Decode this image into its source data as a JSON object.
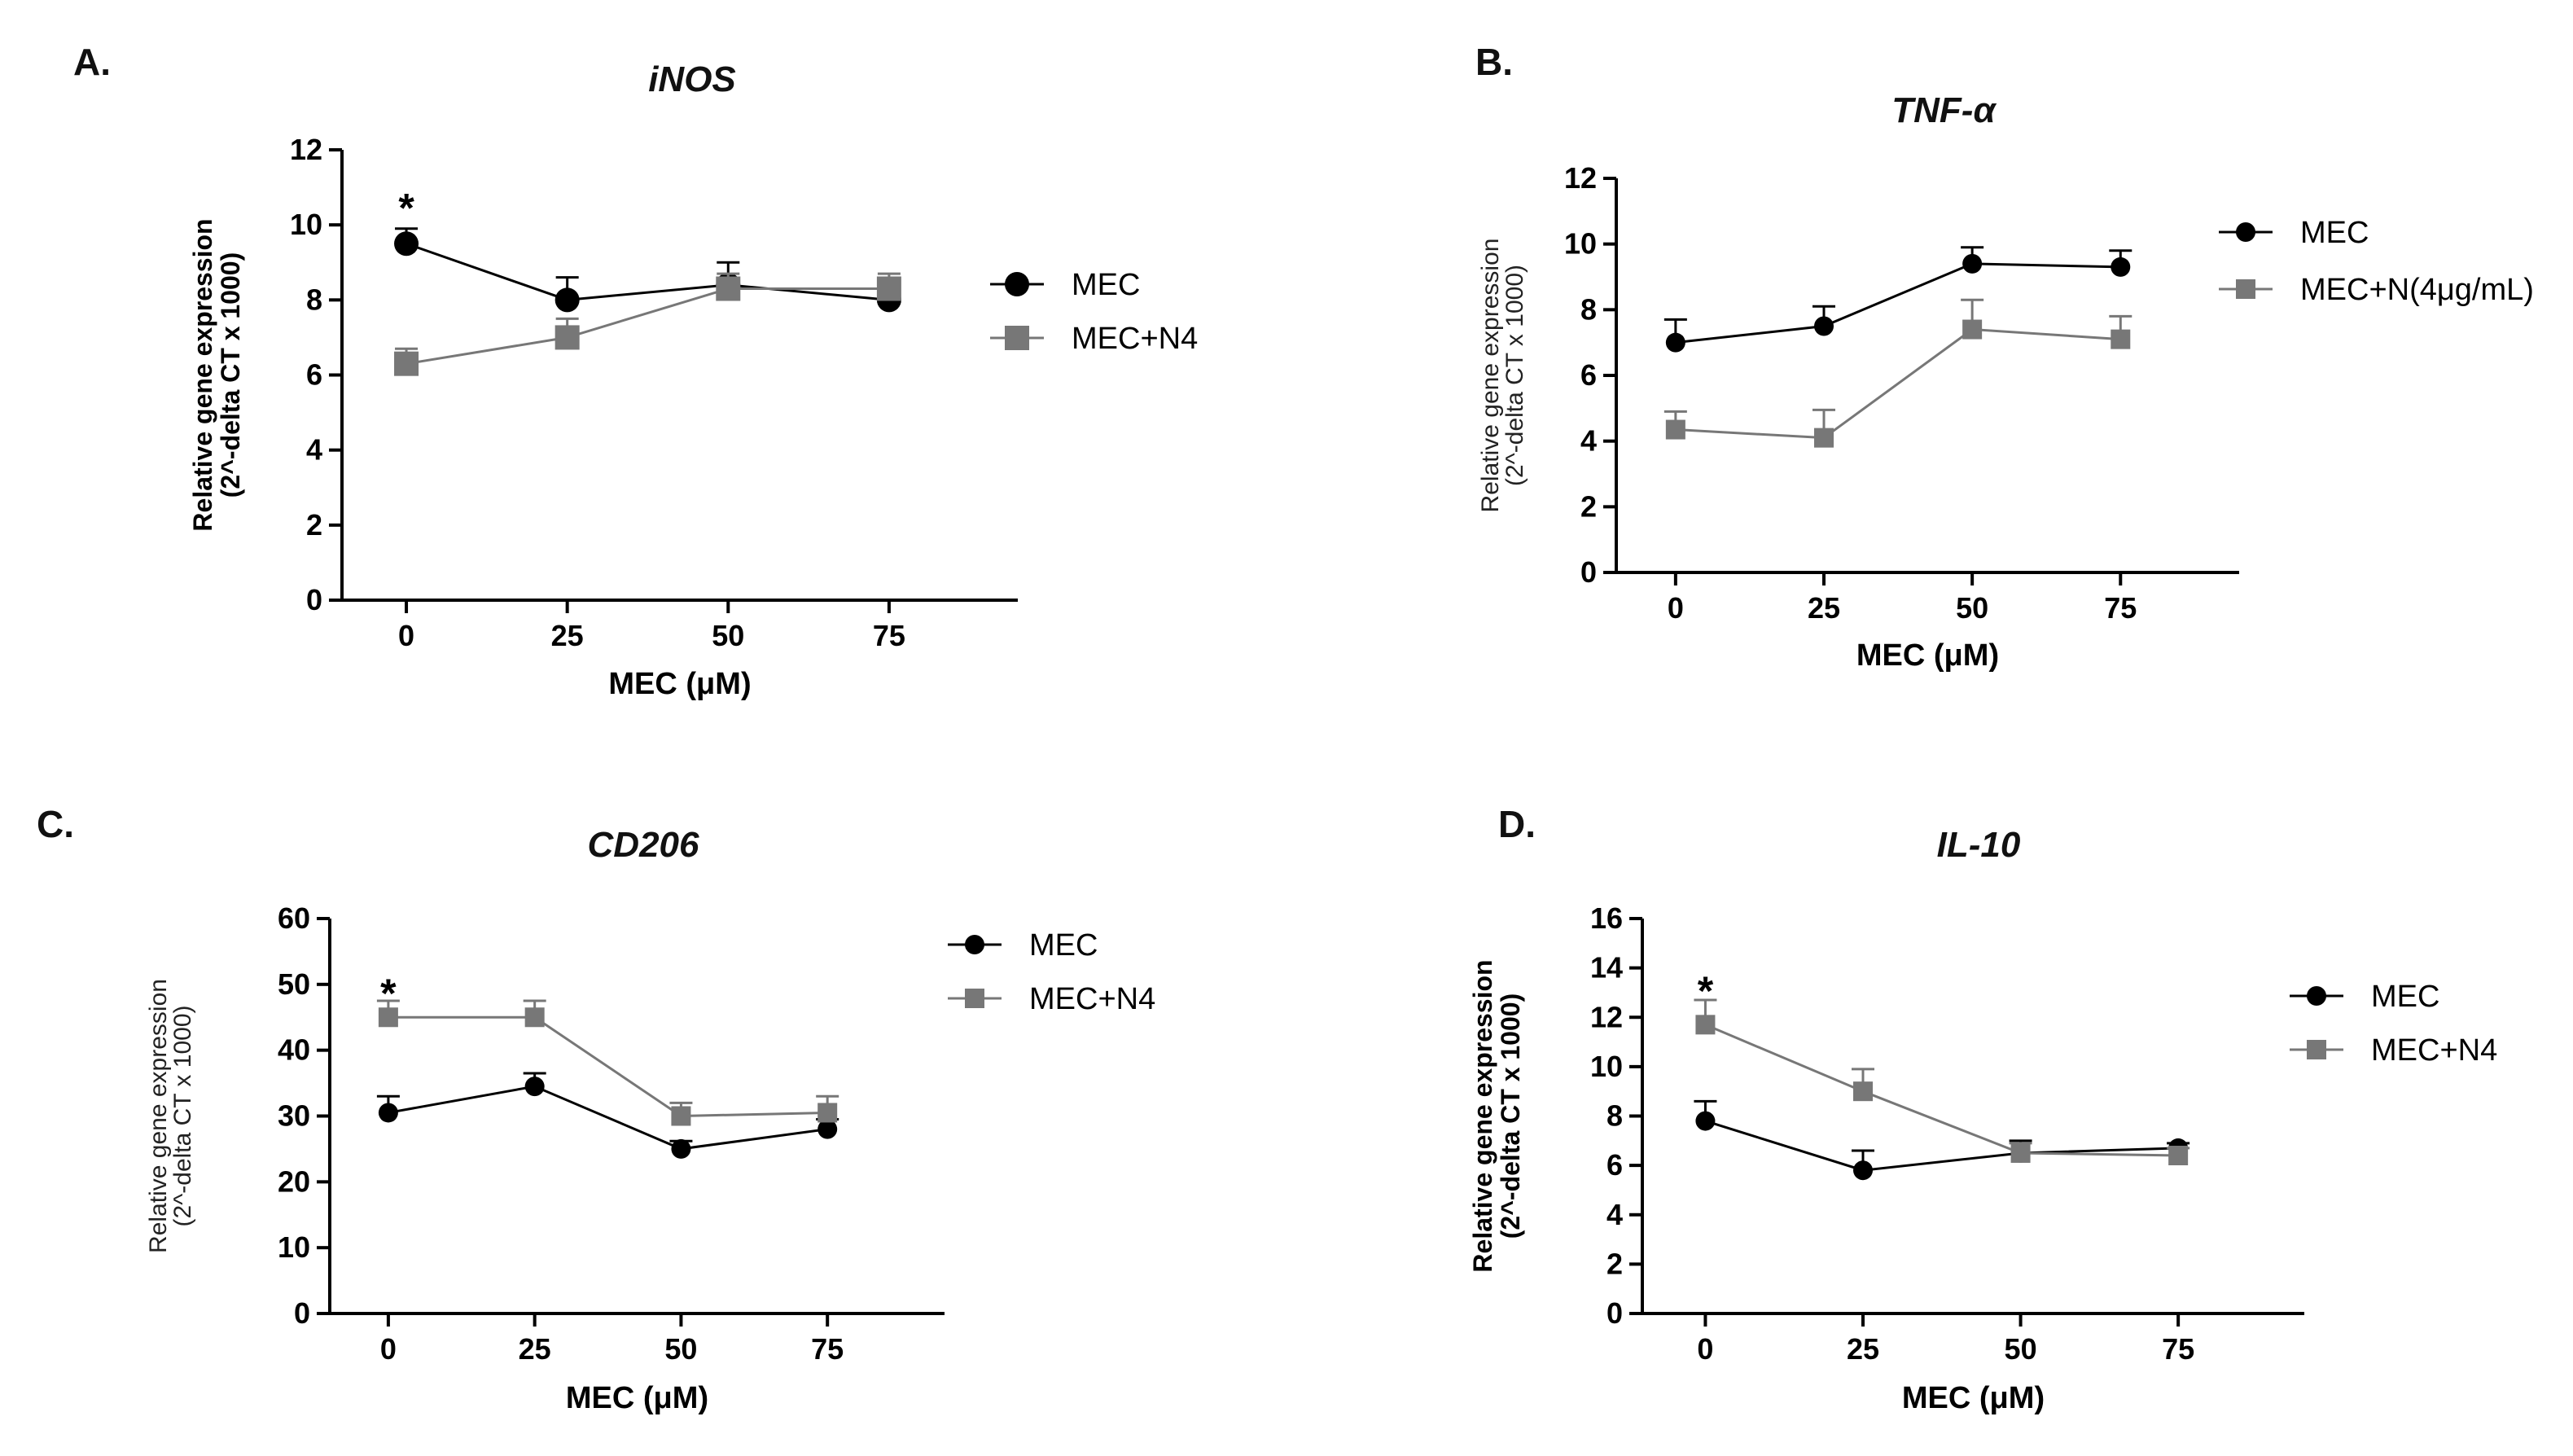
{
  "colors": {
    "MEC": "#000000",
    "MEC+N4": "#777777"
  },
  "chart_data": [
    {
      "panel": "A.",
      "type": "line",
      "title": "iNOS",
      "xlabel": "MEC (μM)",
      "ylabel": [
        "Relative gene expression",
        "(2^-delta CT x 1000)"
      ],
      "x": [
        0,
        25,
        50,
        75
      ],
      "xticks": [
        "0",
        "25",
        "50",
        "75"
      ],
      "ylim": [
        0,
        12
      ],
      "yticks": [
        "0",
        "2",
        "4",
        "6",
        "8",
        "10",
        "12"
      ],
      "grid": false,
      "legend": "right",
      "annotations": [
        {
          "text": "*",
          "x": 0,
          "y": 10.6
        }
      ],
      "series": [
        {
          "name": "MEC",
          "values": [
            9.5,
            8.0,
            8.4,
            8.0
          ],
          "errors": [
            0.4,
            0.6,
            0.6,
            0.3
          ]
        },
        {
          "name": "MEC+N4",
          "values": [
            6.3,
            7.0,
            8.3,
            8.3
          ],
          "errors": [
            0.4,
            0.5,
            0.4,
            0.4
          ]
        }
      ]
    },
    {
      "panel": "B.",
      "type": "line",
      "title": "TNF-α",
      "xlabel": "MEC (μM)",
      "ylabel": [
        "Relative gene expression",
        "(2^-delta CT x 1000)"
      ],
      "x": [
        0,
        25,
        50,
        75
      ],
      "xticks": [
        "0",
        "25",
        "50",
        "75"
      ],
      "ylim": [
        0,
        12
      ],
      "yticks": [
        "0",
        "2",
        "4",
        "6",
        "8",
        "10",
        "12"
      ],
      "grid": false,
      "legend": "right",
      "annotations": [],
      "series": [
        {
          "name": "MEC",
          "values": [
            7.0,
            7.5,
            9.4,
            9.3
          ],
          "errors": [
            0.7,
            0.6,
            0.5,
            0.5
          ]
        },
        {
          "name": "MEC+N(4μg/mL)",
          "values": [
            4.35,
            4.1,
            7.4,
            7.1
          ],
          "errors": [
            0.55,
            0.85,
            0.9,
            0.7
          ]
        }
      ]
    },
    {
      "panel": "C.",
      "type": "line",
      "title": "CD206",
      "xlabel": "MEC (μM)",
      "ylabel": [
        "Relative gene expression",
        "(2^-delta CT x 1000)"
      ],
      "x": [
        0,
        25,
        50,
        75
      ],
      "xticks": [
        "0",
        "25",
        "50",
        "75"
      ],
      "ylim": [
        0,
        60
      ],
      "yticks": [
        "0",
        "10",
        "20",
        "30",
        "40",
        "50",
        "60"
      ],
      "grid": false,
      "legend": "right",
      "annotations": [
        {
          "text": "*",
          "x": 0,
          "y": 49.5
        }
      ],
      "series": [
        {
          "name": "MEC",
          "values": [
            30.5,
            34.5,
            25.0,
            28.0
          ],
          "errors": [
            2.5,
            2.0,
            1.2,
            1.5
          ]
        },
        {
          "name": "MEC+N4",
          "values": [
            45.0,
            45.0,
            30.0,
            30.5
          ],
          "errors": [
            2.5,
            2.5,
            2.0,
            2.5
          ]
        }
      ]
    },
    {
      "panel": "D.",
      "type": "line",
      "title": "IL-10",
      "xlabel": "MEC (μM)",
      "ylabel": [
        "Relative gene expression",
        "(2^-delta CT x 1000)"
      ],
      "x": [
        0,
        25,
        50,
        75
      ],
      "xticks": [
        "0",
        "25",
        "50",
        "75"
      ],
      "ylim": [
        0,
        16
      ],
      "yticks": [
        "0",
        "2",
        "4",
        "6",
        "8",
        "10",
        "12",
        "14",
        "16"
      ],
      "grid": false,
      "legend": "right",
      "annotations": [
        {
          "text": "*",
          "x": 0,
          "y": 13.3
        }
      ],
      "series": [
        {
          "name": "MEC",
          "values": [
            7.8,
            5.8,
            6.5,
            6.7
          ],
          "errors": [
            0.8,
            0.8,
            0.5,
            0.2
          ]
        },
        {
          "name": "MEC+N4",
          "values": [
            11.7,
            9.0,
            6.5,
            6.4
          ],
          "errors": [
            1.0,
            0.9,
            0.4,
            0.3
          ]
        }
      ]
    }
  ]
}
